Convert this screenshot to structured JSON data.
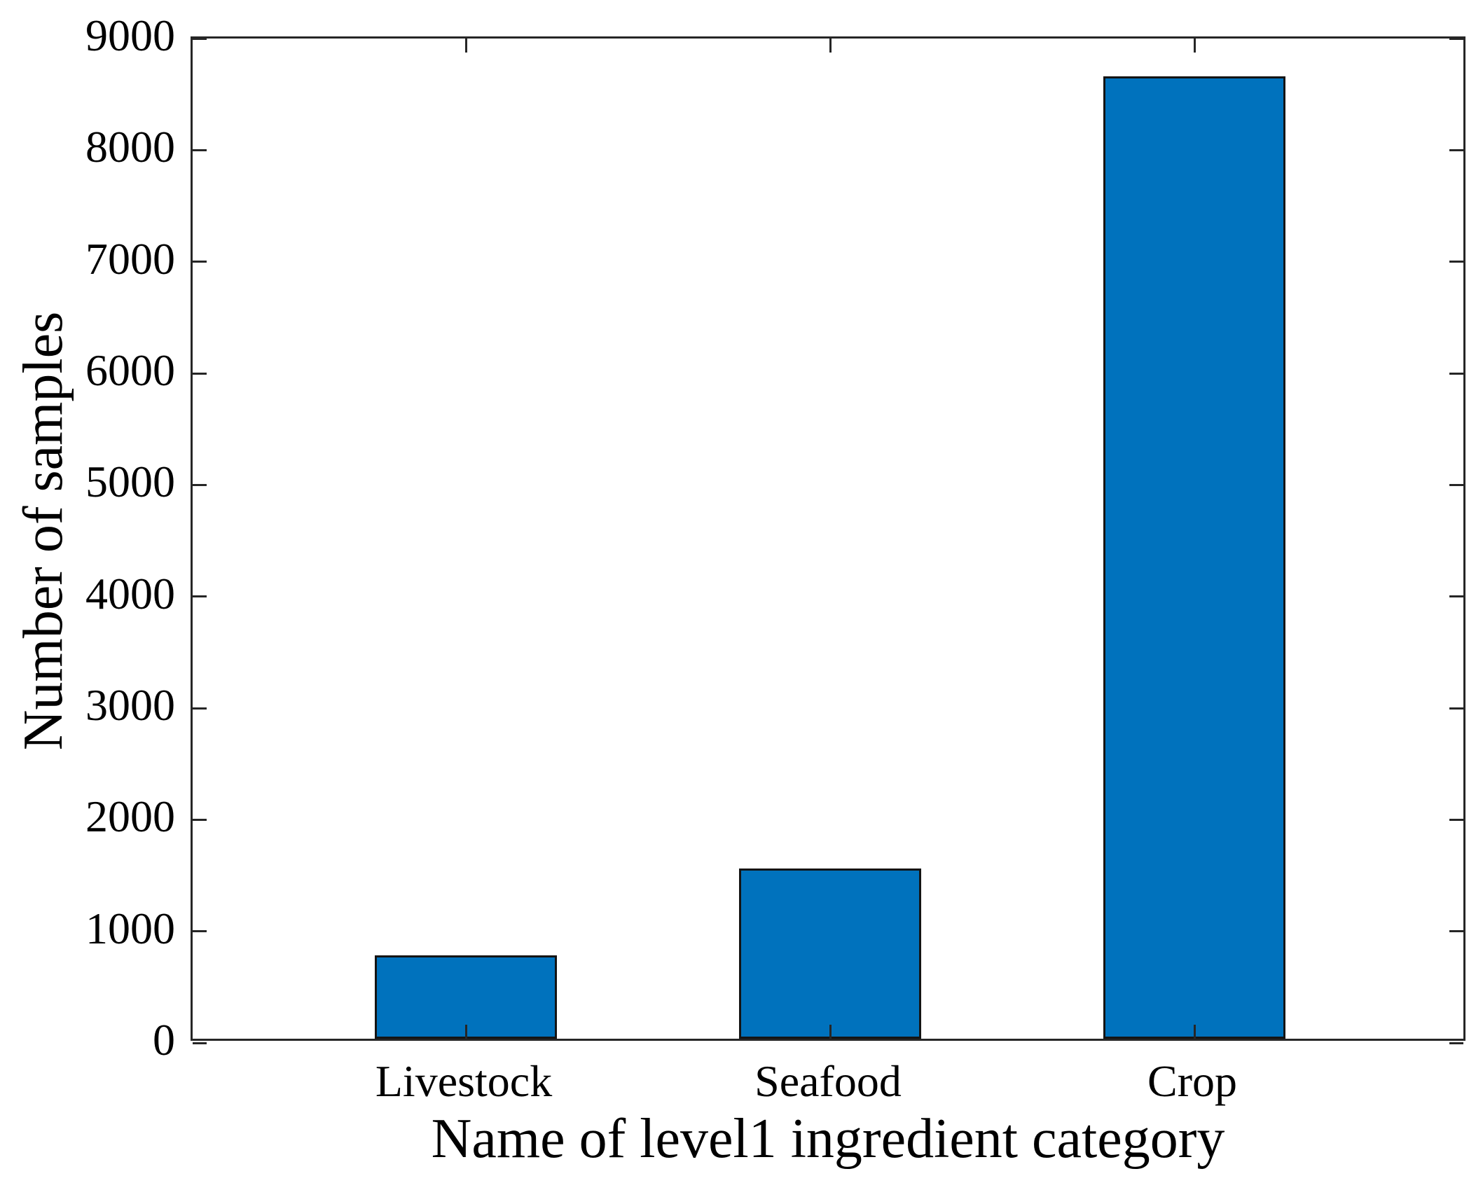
{
  "chart_data": {
    "type": "bar",
    "categories": [
      "Livestock",
      "Seafood",
      "Crop"
    ],
    "values": [
      750,
      1525,
      8625
    ],
    "title": "",
    "xlabel": "Name of level1 ingredient category",
    "ylabel": "Number of samples",
    "ylim": [
      0,
      9000
    ],
    "yticks": [
      0,
      1000,
      2000,
      3000,
      4000,
      5000,
      6000,
      7000,
      8000,
      9000
    ],
    "xlim": [
      0.25,
      3.75
    ],
    "x_positions": [
      1,
      2,
      3
    ],
    "bar_width_units": 0.5,
    "grid": false,
    "legend": "none",
    "tick_direction": "in",
    "box": true,
    "bar_color": "#0072BD",
    "bar_edge_color": "#141414",
    "axis_color": "#262626",
    "background_color": "#FFFFFF"
  }
}
